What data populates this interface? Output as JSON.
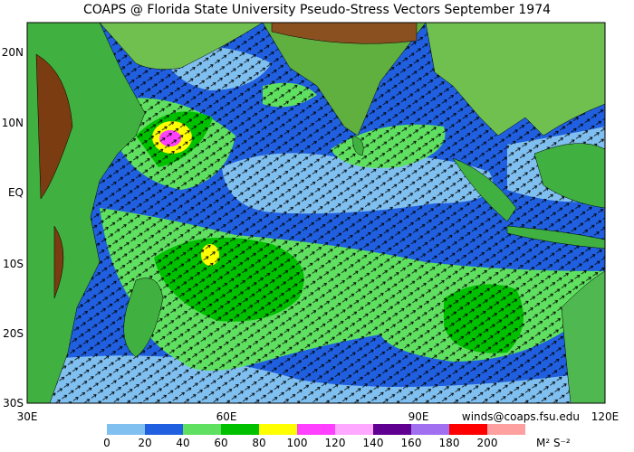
{
  "header": {
    "title": "COAPS @ Florida State University Pseudo-Stress Vectors  September 1974"
  },
  "lat_labels": [
    "20N",
    "10N",
    "EQ",
    "10S",
    "20S",
    "30S"
  ],
  "lon_labels": [
    "30E",
    "60E",
    "90E",
    "120E"
  ],
  "contact": "winds@coaps.fsu.edu",
  "colorbar": {
    "ticks": [
      0,
      20,
      40,
      60,
      80,
      100,
      120,
      140,
      160,
      180,
      200
    ],
    "colors": [
      "#80c0f0",
      "#2060e0",
      "#60e060",
      "#00c000",
      "#ffff00",
      "#ff40ff",
      "#ffa8ff",
      "#600090",
      "#a070f0",
      "#ff0000",
      "#ffa0a0"
    ],
    "unit": "M² S⁻²"
  }
}
